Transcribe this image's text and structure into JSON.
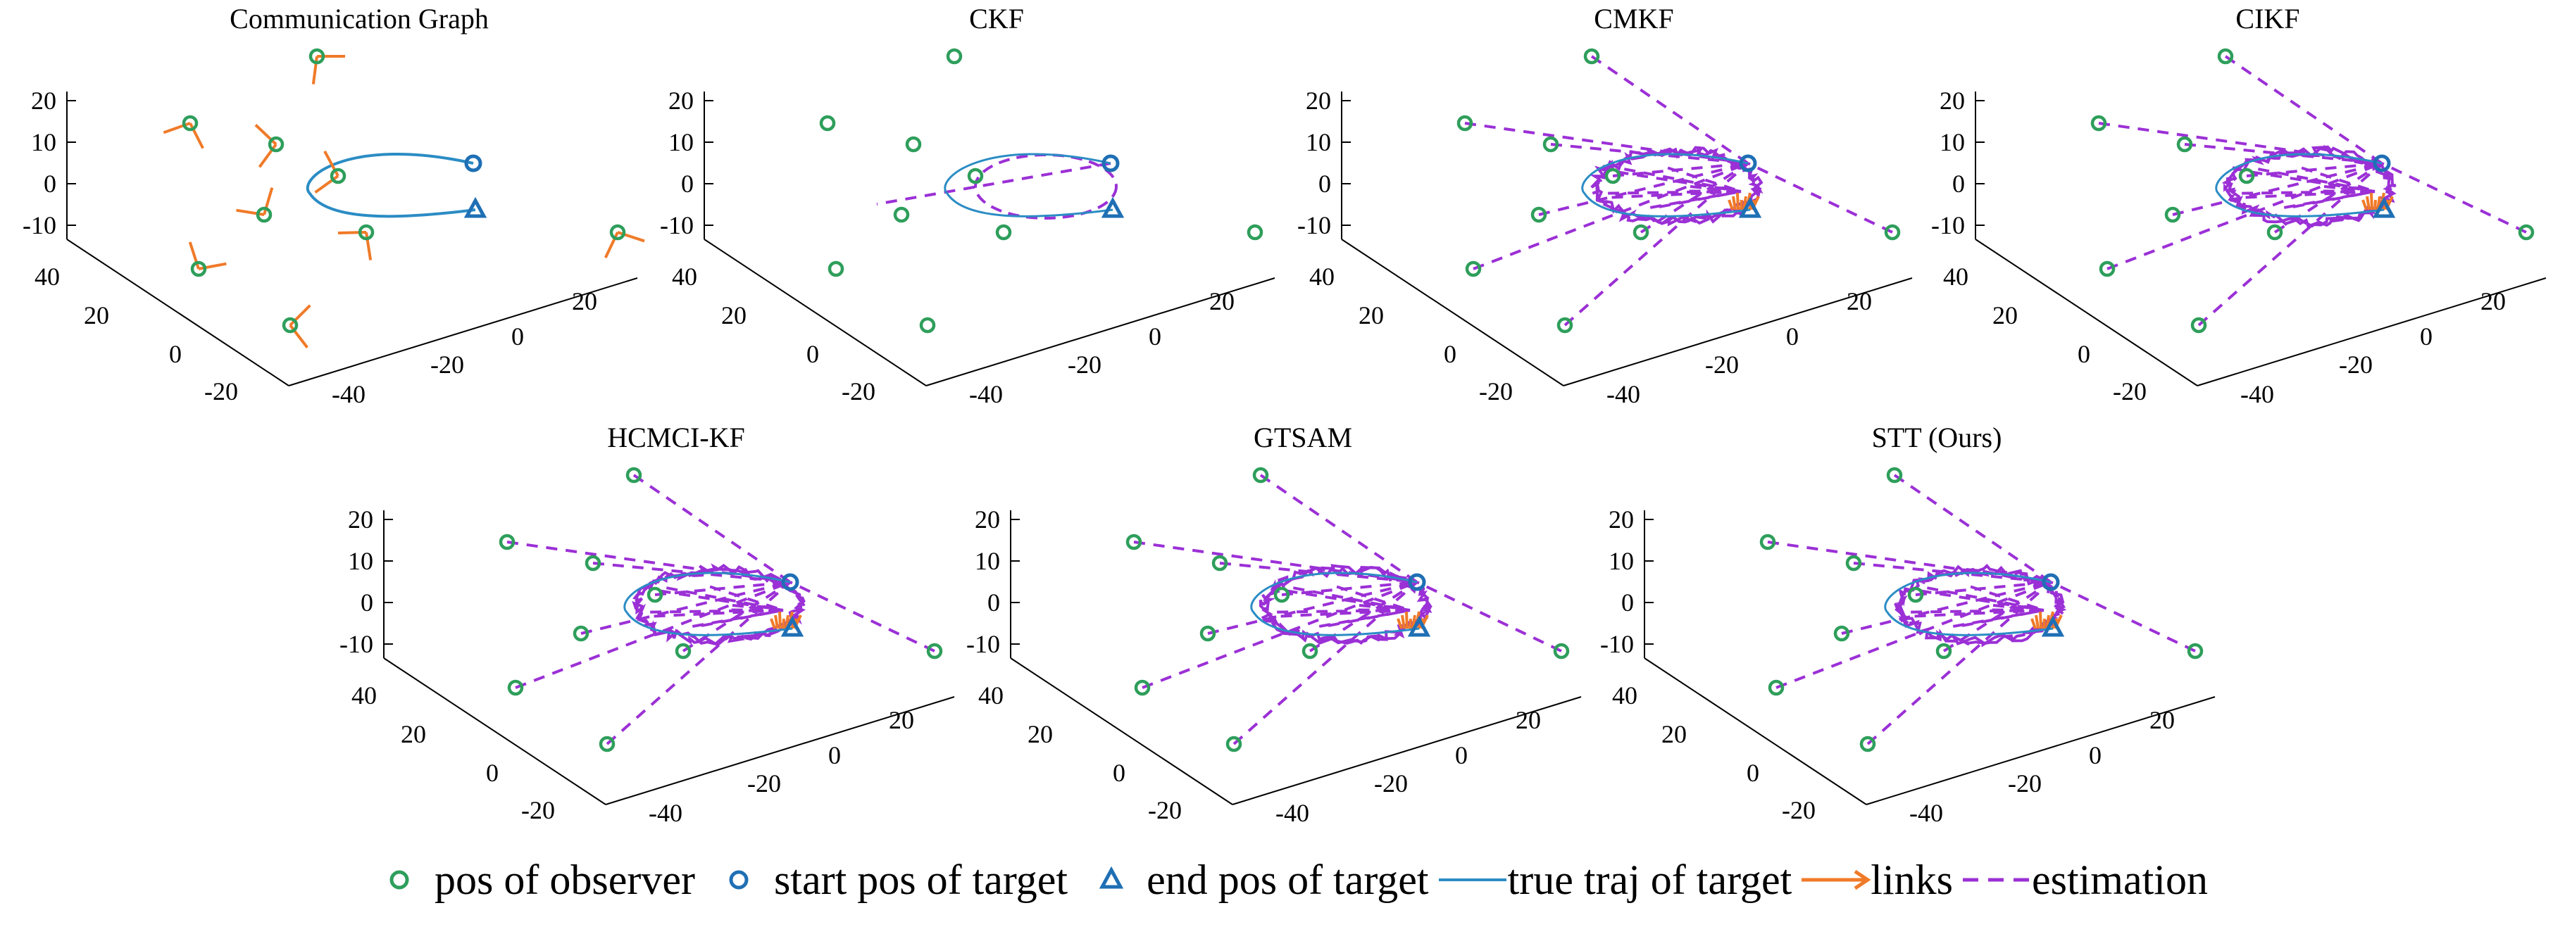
{
  "colors": {
    "observer": "#2e9e5b",
    "start": "#1f6fb4",
    "end": "#1f6fb4",
    "traj": "#2b8cc4",
    "links": "#f07a28",
    "estimation": "#9b30d6"
  },
  "legend": [
    {
      "key": "observer",
      "label": "pos of observer"
    },
    {
      "key": "start",
      "label": "start pos of target"
    },
    {
      "key": "end",
      "label": "end pos of target"
    },
    {
      "key": "traj",
      "label": "true traj of target"
    },
    {
      "key": "links",
      "label": "links"
    },
    {
      "key": "estimation",
      "label": "estimation"
    }
  ],
  "chart_data": [
    {
      "type": "scatter",
      "title": "Communication Graph",
      "show_links": true,
      "show_estimation": false,
      "z_ticks": [
        "20",
        "10",
        "0",
        "-10"
      ],
      "y_ticks": [
        "40",
        "20",
        "0",
        "-20"
      ],
      "x_ticks": [
        "-40",
        "-20",
        "0",
        "20"
      ],
      "xlim": [
        -40,
        30
      ],
      "ylim": [
        -20,
        45
      ],
      "zlim": [
        -15,
        22
      ]
    },
    {
      "type": "scatter",
      "title": "CKF",
      "show_links": false,
      "show_estimation": "partial",
      "z_ticks": [
        "20",
        "10",
        "0",
        "-10"
      ],
      "y_ticks": [
        "40",
        "20",
        "0",
        "-20"
      ],
      "x_ticks": [
        "-40",
        "-20",
        "0",
        "20"
      ],
      "xlim": [
        -40,
        30
      ],
      "ylim": [
        -20,
        45
      ],
      "zlim": [
        -15,
        22
      ]
    },
    {
      "type": "scatter",
      "title": "CMKF",
      "show_links": false,
      "show_estimation": "full",
      "z_ticks": [
        "20",
        "10",
        "0",
        "-10"
      ],
      "y_ticks": [
        "40",
        "20",
        "0",
        "-20"
      ],
      "x_ticks": [
        "-40",
        "-20",
        "0",
        "20"
      ],
      "xlim": [
        -40,
        30
      ],
      "ylim": [
        -20,
        45
      ],
      "zlim": [
        -15,
        22
      ]
    },
    {
      "type": "scatter",
      "title": "CIKF",
      "show_links": false,
      "show_estimation": "full",
      "z_ticks": [
        "20",
        "10",
        "0",
        "-10"
      ],
      "y_ticks": [
        "40",
        "20",
        "0",
        "-20"
      ],
      "x_ticks": [
        "-40",
        "-20",
        "0",
        "20"
      ],
      "xlim": [
        -40,
        30
      ],
      "ylim": [
        -20,
        45
      ],
      "zlim": [
        -15,
        22
      ]
    },
    {
      "type": "scatter",
      "title": "HCMCI-KF",
      "show_links": false,
      "show_estimation": "full",
      "z_ticks": [
        "20",
        "10",
        "0",
        "-10"
      ],
      "y_ticks": [
        "40",
        "20",
        "0",
        "-20"
      ],
      "x_ticks": [
        "-40",
        "-20",
        "0",
        "20"
      ],
      "xlim": [
        -40,
        30
      ],
      "ylim": [
        -20,
        45
      ],
      "zlim": [
        -15,
        22
      ]
    },
    {
      "type": "scatter",
      "title": "GTSAM",
      "show_links": false,
      "show_estimation": "full",
      "z_ticks": [
        "20",
        "10",
        "0",
        "-10"
      ],
      "y_ticks": [
        "40",
        "20",
        "0",
        "-20"
      ],
      "x_ticks": [
        "-40",
        "-20",
        "0",
        "20"
      ],
      "xlim": [
        -40,
        30
      ],
      "ylim": [
        -20,
        45
      ],
      "zlim": [
        -15,
        22
      ]
    },
    {
      "type": "scatter",
      "title": "STT (Ours)",
      "show_links": false,
      "show_estimation": "full",
      "z_ticks": [
        "20",
        "10",
        "0",
        "-10"
      ],
      "y_ticks": [
        "40",
        "20",
        "0",
        "-20"
      ],
      "x_ticks": [
        "-40",
        "-20",
        "0",
        "20"
      ],
      "xlim": [
        -40,
        30
      ],
      "ylim": [
        -20,
        45
      ],
      "zlim": [
        -15,
        22
      ]
    }
  ]
}
